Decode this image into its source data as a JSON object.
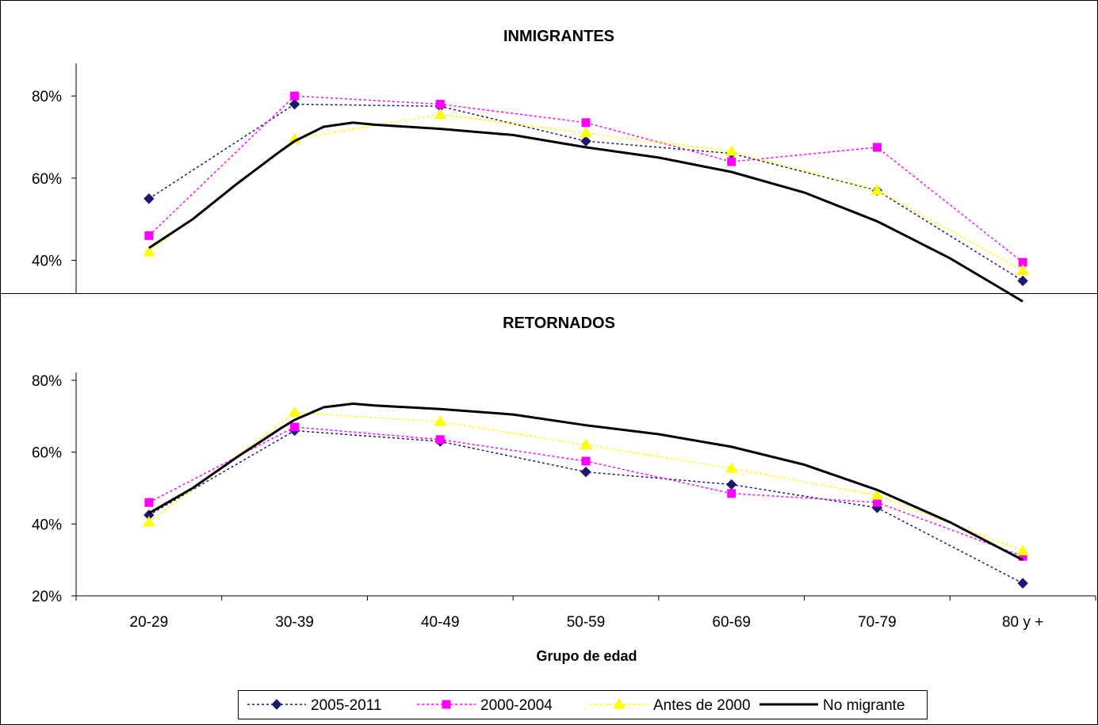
{
  "chart_data": [
    {
      "type": "line",
      "title": "INMIGRANTES",
      "categories": [
        "20-29",
        "30-39",
        "40-49",
        "50-59",
        "60-69",
        "70-79",
        "80 y +"
      ],
      "yticks": [
        "40%",
        "60%",
        "80%"
      ],
      "ylim": [
        0.32,
        0.86
      ],
      "series": [
        {
          "name": "2005-2011",
          "color": "#1a1a6e",
          "marker": "diamond",
          "dash": true,
          "values": [
            0.55,
            0.78,
            0.775,
            0.69,
            0.66,
            0.57,
            0.35
          ]
        },
        {
          "name": "2000-2004",
          "color": "#ff00ff",
          "marker": "square",
          "dash": true,
          "values": [
            0.46,
            0.8,
            0.78,
            0.735,
            0.64,
            0.675,
            0.395
          ]
        },
        {
          "name": "Antes de 2000",
          "color": "#ffff00",
          "marker": "triangle",
          "dash": true,
          "values": [
            0.42,
            0.695,
            0.755,
            0.71,
            0.665,
            0.57,
            0.375
          ]
        },
        {
          "name": "No migrante",
          "color": "#000000",
          "marker": "none",
          "dash": false,
          "x": [
            0,
            0.3,
            0.6,
            0.9,
            1.0,
            1.2,
            1.4,
            1.55,
            2.0,
            2.5,
            3.0,
            3.5,
            4.0,
            4.5,
            5.0,
            5.5,
            6.0
          ],
          "values": [
            0.43,
            0.5,
            0.585,
            0.665,
            0.69,
            0.725,
            0.735,
            0.73,
            0.72,
            0.705,
            0.675,
            0.65,
            0.615,
            0.565,
            0.495,
            0.405,
            0.3
          ]
        }
      ]
    },
    {
      "type": "line",
      "title": "RETORNADOS",
      "categories": [
        "20-29",
        "30-39",
        "40-49",
        "50-59",
        "60-69",
        "70-79",
        "80 y +"
      ],
      "yticks": [
        "20%",
        "40%",
        "60%",
        "80%"
      ],
      "ylim": [
        0.2,
        0.8
      ],
      "xlabel": "Grupo de edad",
      "series": [
        {
          "name": "2005-2011",
          "color": "#1a1a6e",
          "marker": "diamond",
          "dash": true,
          "values": [
            0.425,
            0.66,
            0.63,
            0.545,
            0.51,
            0.445,
            0.235
          ]
        },
        {
          "name": "2000-2004",
          "color": "#ff00ff",
          "marker": "square",
          "dash": true,
          "values": [
            0.46,
            0.67,
            0.635,
            0.575,
            0.485,
            0.46,
            0.31
          ]
        },
        {
          "name": "Antes de 2000",
          "color": "#ffff00",
          "marker": "triangle",
          "dash": true,
          "values": [
            0.405,
            0.71,
            0.685,
            0.62,
            0.555,
            0.48,
            0.325
          ]
        },
        {
          "name": "No migrante",
          "color": "#000000",
          "marker": "none",
          "dash": false,
          "x": [
            0,
            0.3,
            0.6,
            0.9,
            1.0,
            1.2,
            1.4,
            1.55,
            2.0,
            2.5,
            3.0,
            3.5,
            4.0,
            4.5,
            5.0,
            5.5,
            6.0
          ],
          "values": [
            0.43,
            0.5,
            0.585,
            0.665,
            0.69,
            0.725,
            0.735,
            0.73,
            0.72,
            0.705,
            0.675,
            0.65,
            0.615,
            0.565,
            0.495,
            0.405,
            0.3
          ]
        }
      ]
    }
  ],
  "legend": {
    "position": "bottom",
    "entries": [
      {
        "label": "2005-2011",
        "color": "#1a1a6e",
        "marker": "diamond",
        "dash": true
      },
      {
        "label": "2000-2004",
        "color": "#ff00ff",
        "marker": "square",
        "dash": true
      },
      {
        "label": "Antes de 2000",
        "color": "#ffff00",
        "marker": "triangle",
        "dash": true
      },
      {
        "label": "No migrante",
        "color": "#000000",
        "marker": "none",
        "dash": false
      }
    ]
  }
}
